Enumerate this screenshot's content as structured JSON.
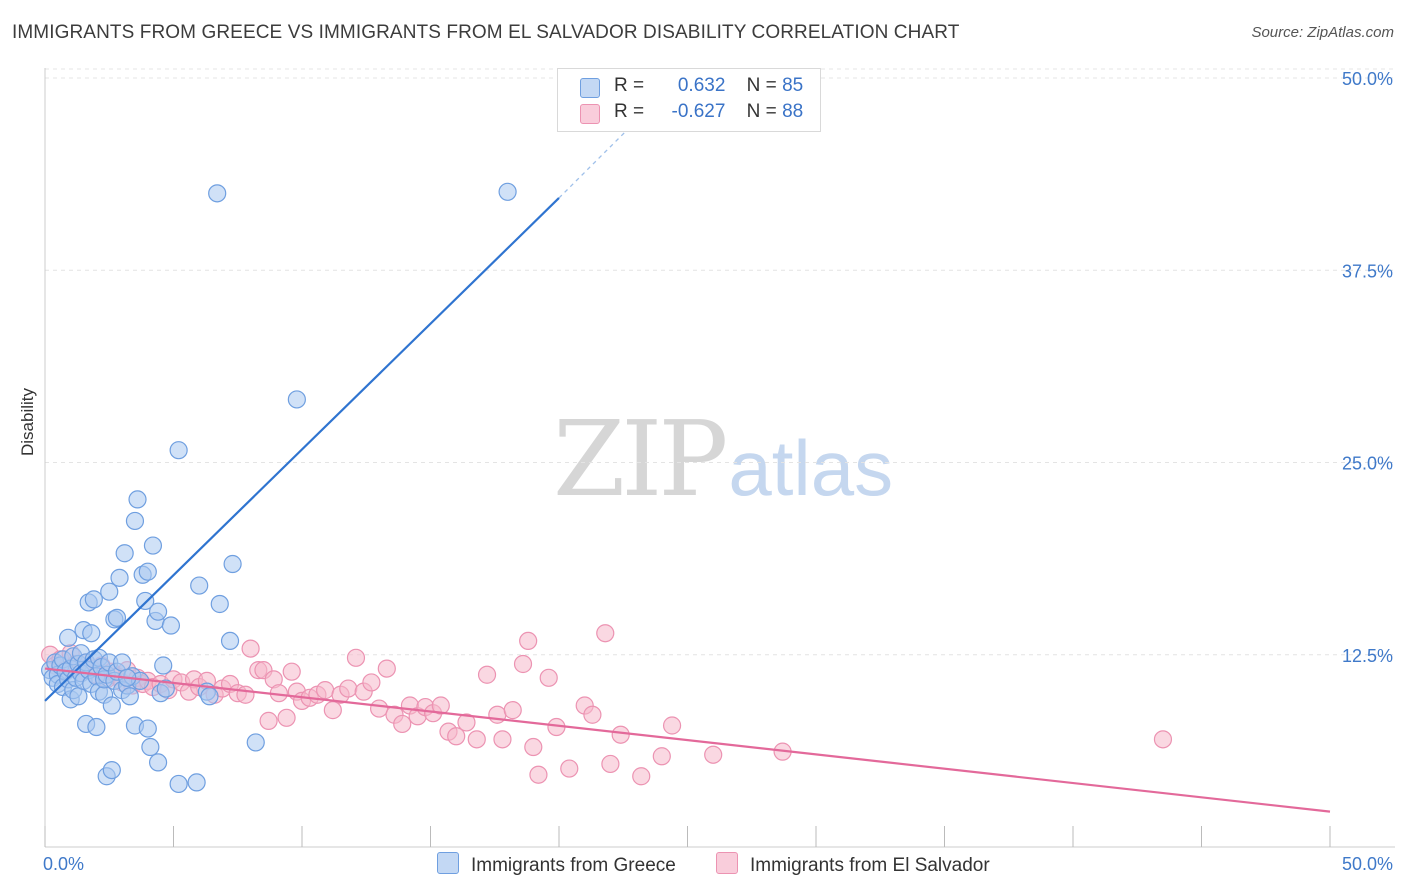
{
  "header": {
    "title": "IMMIGRANTS FROM GREECE VS IMMIGRANTS FROM EL SALVADOR DISABILITY CORRELATION CHART",
    "source": "Source: ZipAtlas.com"
  },
  "watermark": {
    "zip": "ZIP",
    "atlas": "atlas"
  },
  "legend": {
    "rows": [
      {
        "r_label": "R =",
        "r_value": "0.632",
        "n_label": "N =",
        "n_value": "85"
      },
      {
        "r_label": "R =",
        "r_value": "-0.627",
        "n_label": "N =",
        "n_value": "88"
      }
    ]
  },
  "bottom_legend": {
    "series1": "Immigrants from Greece",
    "series2": "Immigrants from El Salvador"
  },
  "colors": {
    "blue_fill": "#a9c8f0",
    "blue_stroke": "#6f9fe0",
    "blue_line": "#2f74d0",
    "pink_fill": "#f6b8cb",
    "pink_stroke": "#ec93b2",
    "pink_line": "#e3699a",
    "tick_label": "#3f79c9",
    "grid": "#e4e4e4"
  },
  "chart_data": {
    "type": "scatter",
    "title": "IMMIGRANTS FROM GREECE VS IMMIGRANTS FROM EL SALVADOR DISABILITY CORRELATION CHART",
    "xlabel": "",
    "ylabel": "Disability",
    "xlim": [
      0,
      50
    ],
    "ylim": [
      0,
      50
    ],
    "x_tick_labels": [
      "0.0%",
      "50.0%"
    ],
    "y_ticks": [
      12.5,
      25,
      37.5,
      50
    ],
    "y_tick_labels": [
      "12.5%",
      "25.0%",
      "37.5%",
      "50.0%"
    ],
    "grid": true,
    "legend_position": "top-center",
    "series": [
      {
        "name": "Immigrants from Greece",
        "r": 0.632,
        "n": 85,
        "trend": {
          "x0": 0,
          "y0": 9.5,
          "x1": 20,
          "y1": 42.2,
          "dashed_to_x": 23,
          "dashed_to_y": 47.2
        },
        "points": [
          [
            0.2,
            11.5
          ],
          [
            0.3,
            11.0
          ],
          [
            0.4,
            12.0
          ],
          [
            0.5,
            11.2
          ],
          [
            0.5,
            10.6
          ],
          [
            0.6,
            11.8
          ],
          [
            0.7,
            10.4
          ],
          [
            0.7,
            12.2
          ],
          [
            0.8,
            11.4
          ],
          [
            0.9,
            10.9
          ],
          [
            0.9,
            13.6
          ],
          [
            1.0,
            11.6
          ],
          [
            1.0,
            9.6
          ],
          [
            1.1,
            12.4
          ],
          [
            1.1,
            10.2
          ],
          [
            1.2,
            11.0
          ],
          [
            1.3,
            11.9
          ],
          [
            1.3,
            9.8
          ],
          [
            1.4,
            11.3
          ],
          [
            1.4,
            12.6
          ],
          [
            1.5,
            10.8
          ],
          [
            1.5,
            14.1
          ],
          [
            1.6,
            12.0
          ],
          [
            1.6,
            8.0
          ],
          [
            1.7,
            11.5
          ],
          [
            1.7,
            15.9
          ],
          [
            1.8,
            13.9
          ],
          [
            1.8,
            10.6
          ],
          [
            1.9,
            16.1
          ],
          [
            1.9,
            12.2
          ],
          [
            2.0,
            7.8
          ],
          [
            2.0,
            11.1
          ],
          [
            2.1,
            12.3
          ],
          [
            2.1,
            10.1
          ],
          [
            2.2,
            11.7
          ],
          [
            2.3,
            9.9
          ],
          [
            2.3,
            10.9
          ],
          [
            2.4,
            11.2
          ],
          [
            2.4,
            4.6
          ],
          [
            2.5,
            12.0
          ],
          [
            2.5,
            16.6
          ],
          [
            2.6,
            9.2
          ],
          [
            2.6,
            5.0
          ],
          [
            2.7,
            10.8
          ],
          [
            2.7,
            14.8
          ],
          [
            2.8,
            11.4
          ],
          [
            2.8,
            14.9
          ],
          [
            2.9,
            17.5
          ],
          [
            3.0,
            10.2
          ],
          [
            3.0,
            12.0
          ],
          [
            3.1,
            19.1
          ],
          [
            3.2,
            10.5
          ],
          [
            3.3,
            9.8
          ],
          [
            3.4,
            11.1
          ],
          [
            3.5,
            21.2
          ],
          [
            3.5,
            7.9
          ],
          [
            3.6,
            22.6
          ],
          [
            3.7,
            10.8
          ],
          [
            3.8,
            17.7
          ],
          [
            3.9,
            16.0
          ],
          [
            4.0,
            17.9
          ],
          [
            4.0,
            7.7
          ],
          [
            4.1,
            6.5
          ],
          [
            4.2,
            19.6
          ],
          [
            4.3,
            14.7
          ],
          [
            4.4,
            15.3
          ],
          [
            4.4,
            5.5
          ],
          [
            4.5,
            10.0
          ],
          [
            4.6,
            11.8
          ],
          [
            4.7,
            10.3
          ],
          [
            4.9,
            14.4
          ],
          [
            5.2,
            25.8
          ],
          [
            5.2,
            4.1
          ],
          [
            5.9,
            4.2
          ],
          [
            6.0,
            17.0
          ],
          [
            6.3,
            10.1
          ],
          [
            6.4,
            9.8
          ],
          [
            6.8,
            15.8
          ],
          [
            7.2,
            13.4
          ],
          [
            7.3,
            18.4
          ],
          [
            6.7,
            42.5
          ],
          [
            8.2,
            6.8
          ],
          [
            9.8,
            29.1
          ],
          [
            18.0,
            42.6
          ],
          [
            3.2,
            11.0
          ]
        ]
      },
      {
        "name": "Immigrants from El Salvador",
        "r": -0.627,
        "n": 88,
        "trend": {
          "x0": 0,
          "y0": 11.6,
          "x1": 50,
          "y1": 2.3
        },
        "points": [
          [
            0.2,
            12.5
          ],
          [
            0.4,
            11.8
          ],
          [
            0.6,
            12.2
          ],
          [
            0.8,
            11.5
          ],
          [
            1.0,
            12.6
          ],
          [
            1.2,
            11.9
          ],
          [
            1.4,
            11.3
          ],
          [
            1.6,
            12.0
          ],
          [
            1.8,
            11.6
          ],
          [
            2.0,
            11.2
          ],
          [
            2.2,
            11.8
          ],
          [
            2.4,
            10.9
          ],
          [
            2.6,
            11.4
          ],
          [
            2.8,
            11.1
          ],
          [
            3.0,
            10.7
          ],
          [
            3.2,
            11.5
          ],
          [
            3.4,
            10.5
          ],
          [
            3.6,
            11.0
          ],
          [
            3.8,
            10.6
          ],
          [
            4.0,
            10.8
          ],
          [
            4.2,
            10.4
          ],
          [
            4.5,
            10.6
          ],
          [
            4.8,
            10.2
          ],
          [
            5.0,
            10.9
          ],
          [
            5.3,
            10.7
          ],
          [
            5.6,
            10.1
          ],
          [
            5.8,
            10.9
          ],
          [
            6.0,
            10.4
          ],
          [
            6.3,
            10.8
          ],
          [
            6.6,
            9.9
          ],
          [
            6.9,
            10.3
          ],
          [
            7.2,
            10.6
          ],
          [
            7.5,
            10.0
          ],
          [
            7.8,
            9.9
          ],
          [
            8.0,
            12.9
          ],
          [
            8.3,
            11.5
          ],
          [
            8.5,
            11.5
          ],
          [
            8.7,
            8.2
          ],
          [
            8.9,
            10.9
          ],
          [
            9.1,
            10.0
          ],
          [
            9.4,
            8.4
          ],
          [
            9.6,
            11.4
          ],
          [
            9.8,
            10.1
          ],
          [
            10.0,
            9.5
          ],
          [
            10.3,
            9.7
          ],
          [
            10.6,
            9.9
          ],
          [
            10.9,
            10.2
          ],
          [
            11.2,
            8.9
          ],
          [
            11.5,
            9.9
          ],
          [
            11.8,
            10.3
          ],
          [
            12.1,
            12.3
          ],
          [
            12.4,
            10.1
          ],
          [
            12.7,
            10.7
          ],
          [
            13.0,
            9.0
          ],
          [
            13.3,
            11.6
          ],
          [
            13.6,
            8.6
          ],
          [
            13.9,
            8.0
          ],
          [
            14.2,
            9.2
          ],
          [
            14.5,
            8.5
          ],
          [
            14.8,
            9.1
          ],
          [
            15.1,
            8.7
          ],
          [
            15.4,
            9.2
          ],
          [
            15.7,
            7.5
          ],
          [
            16.0,
            7.2
          ],
          [
            16.4,
            8.1
          ],
          [
            16.8,
            7.0
          ],
          [
            17.2,
            11.2
          ],
          [
            17.6,
            8.6
          ],
          [
            17.8,
            7.0
          ],
          [
            18.2,
            8.9
          ],
          [
            18.6,
            11.9
          ],
          [
            18.8,
            13.4
          ],
          [
            19.0,
            6.5
          ],
          [
            19.2,
            4.7
          ],
          [
            19.6,
            11.0
          ],
          [
            19.9,
            7.8
          ],
          [
            20.4,
            5.1
          ],
          [
            21.0,
            9.2
          ],
          [
            21.3,
            8.6
          ],
          [
            21.8,
            13.9
          ],
          [
            22.0,
            5.4
          ],
          [
            22.4,
            7.3
          ],
          [
            23.2,
            4.6
          ],
          [
            24.0,
            5.9
          ],
          [
            24.4,
            7.9
          ],
          [
            26.0,
            6.0
          ],
          [
            28.7,
            6.2
          ],
          [
            43.5,
            7.0
          ]
        ]
      }
    ]
  }
}
